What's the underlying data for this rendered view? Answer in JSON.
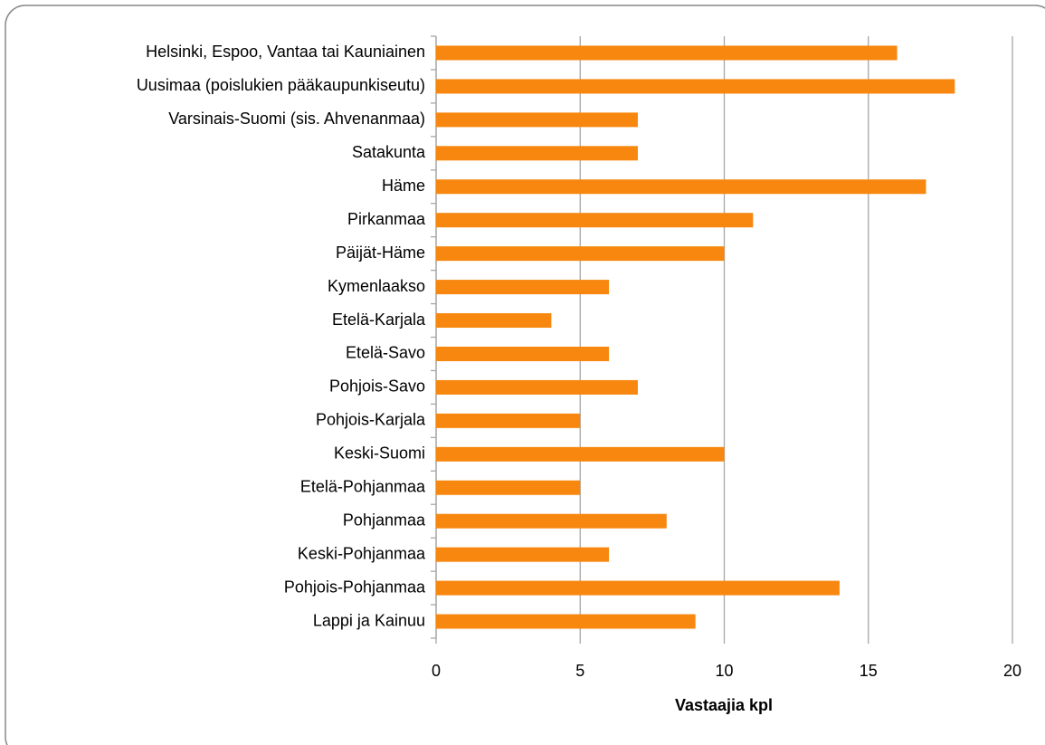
{
  "chart_data": {
    "type": "bar",
    "orientation": "horizontal",
    "categories": [
      "Helsinki, Espoo, Vantaa tai Kauniainen",
      "Uusimaa (poislukien pääkaupunkiseutu)",
      "Varsinais-Suomi (sis. Ahvenanmaa)",
      "Satakunta",
      "Häme",
      "Pirkanmaa",
      "Päijät-Häme",
      "Kymenlaakso",
      "Etelä-Karjala",
      "Etelä-Savo",
      "Pohjois-Savo",
      "Pohjois-Karjala",
      "Keski-Suomi",
      "Etelä-Pohjanmaa",
      "Pohjanmaa",
      "Keski-Pohjanmaa",
      "Pohjois-Pohjanmaa",
      "Lappi ja Kainuu"
    ],
    "values": [
      16,
      18,
      7,
      7,
      17,
      11,
      10,
      6,
      4,
      6,
      7,
      5,
      10,
      5,
      8,
      6,
      14,
      9
    ],
    "color": "#f7870f",
    "x_label": "Vastaajia kpl",
    "xlim": [
      0,
      20
    ],
    "xticks": [
      0,
      5,
      10,
      15,
      20
    ],
    "grid": true
  }
}
